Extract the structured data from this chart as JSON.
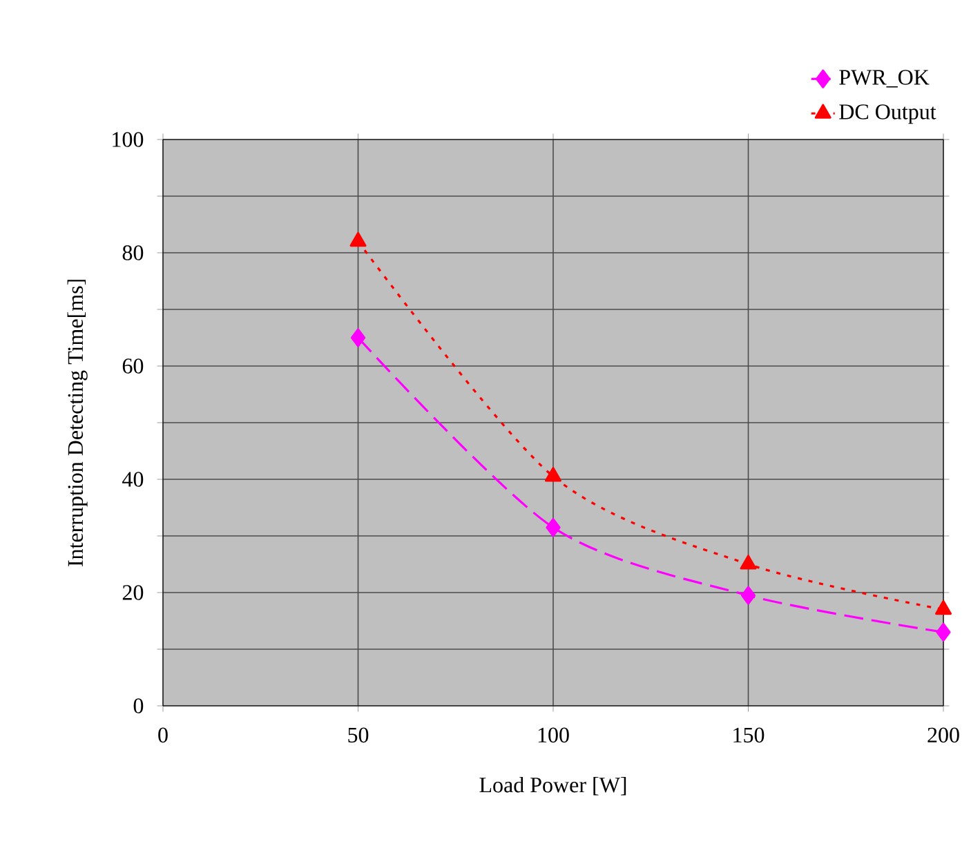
{
  "chart_data": {
    "type": "line",
    "xlabel": "Load Power [W]",
    "ylabel": "Interruption Detecting Time[ms]",
    "x": [
      50,
      100,
      150,
      200
    ],
    "series": [
      {
        "name": "PWR_OK",
        "color": "#ff00ff",
        "values": [
          65,
          31.5,
          19.5,
          13
        ],
        "marker": "diamond",
        "line_style": "dashed"
      },
      {
        "name": "DC Output",
        "color": "#ff0000",
        "values": [
          82,
          40.5,
          25,
          17
        ],
        "marker": "triangle",
        "line_style": "dotted"
      }
    ],
    "xlim": [
      0,
      200
    ],
    "xticks": [
      0,
      50,
      100,
      150,
      200
    ],
    "ylim": [
      0,
      100
    ],
    "yticks": [
      0,
      {
        "value": 10,
        "label": null
      },
      20,
      {
        "value": 30,
        "label": null
      },
      40,
      {
        "value": 50,
        "label": null
      },
      60,
      {
        "value": 70,
        "label": null
      },
      80,
      {
        "value": 90,
        "label": null
      },
      100
    ],
    "grid": true,
    "legend": "top right"
  }
}
